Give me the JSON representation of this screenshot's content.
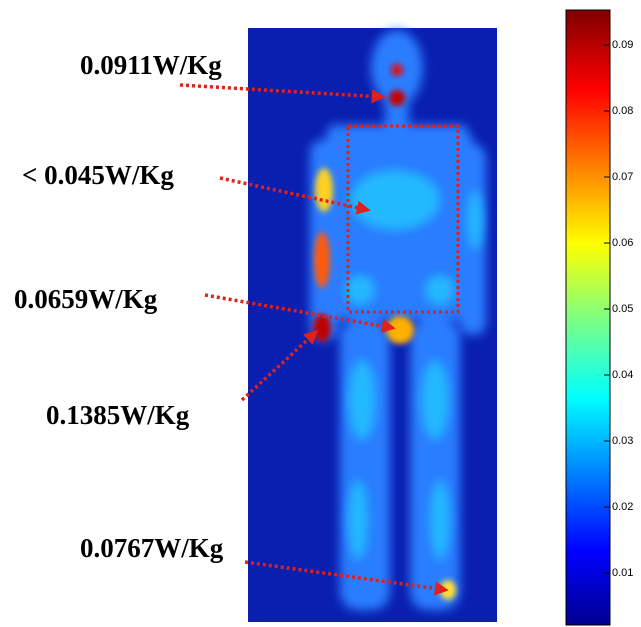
{
  "annotations": [
    "0.0911W/Kg",
    "< 0.045W/Kg",
    "0.0659W/Kg",
    "0.1385W/Kg",
    "0.0767W/Kg"
  ],
  "colorbar": {
    "ticks": [
      0.01,
      0.02,
      0.03,
      0.04,
      0.05,
      0.06,
      0.07,
      0.08,
      0.09
    ]
  }
}
